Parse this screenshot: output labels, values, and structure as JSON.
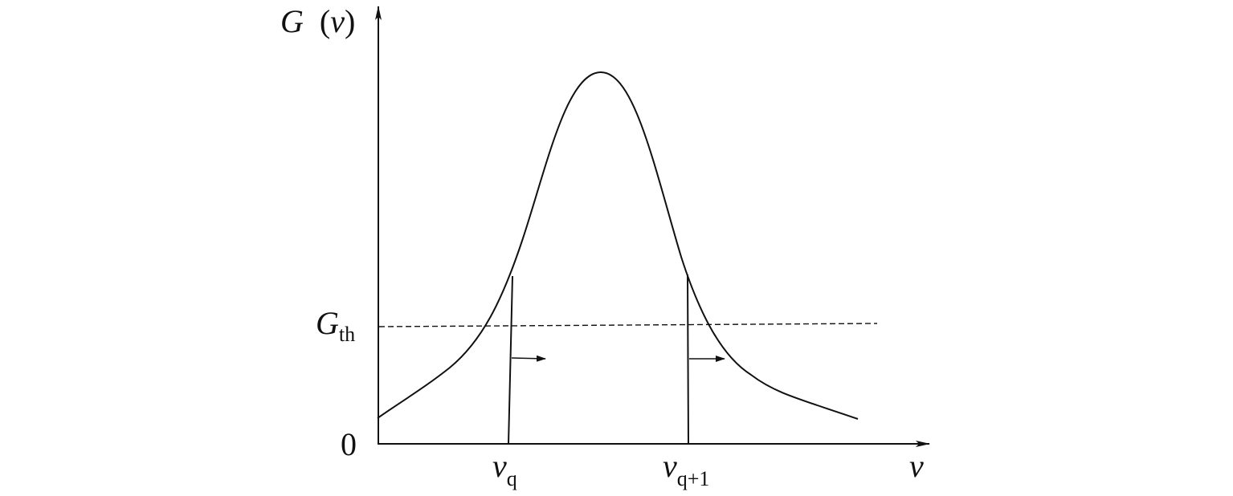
{
  "colors": {
    "ink": "#111111",
    "background": "#ffffff"
  },
  "y_axis": {
    "label_symbol": "G",
    "label_arg_open": "(",
    "label_arg": "v",
    "label_arg_close": ")"
  },
  "x_axis": {
    "label": "v"
  },
  "origin_label": "0",
  "threshold": {
    "symbol": "G",
    "subscript": "th"
  },
  "mode_q": {
    "symbol": "v",
    "subscript": "q"
  },
  "mode_q1": {
    "symbol": "v",
    "subscript": "q+1"
  },
  "icons": {
    "arrow_q": "right-arrow-icon",
    "arrow_q1": "right-arrow-icon"
  }
}
